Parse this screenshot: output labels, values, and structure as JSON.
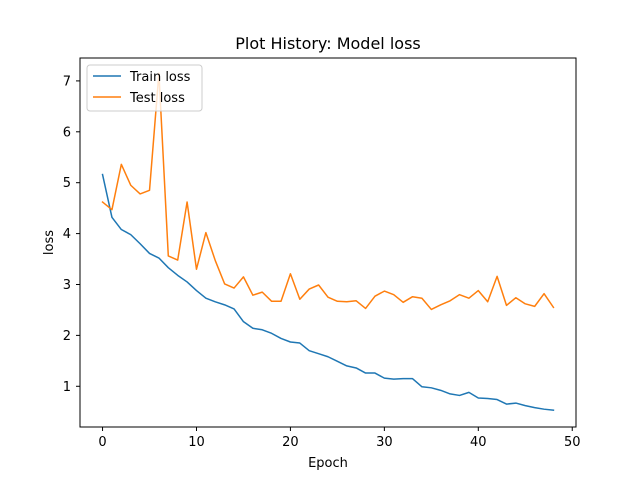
{
  "chart_data": {
    "type": "line",
    "title": "Plot History: Model loss",
    "xlabel": "Epoch",
    "ylabel": "loss",
    "xlim": [
      -2.4,
      50.4
    ],
    "ylim": [
      0.2,
      7.45
    ],
    "xticks": [
      0,
      10,
      20,
      30,
      40,
      50
    ],
    "yticks": [
      1,
      2,
      3,
      4,
      5,
      6,
      7
    ],
    "grid": false,
    "legend_position": "upper-left",
    "x": [
      0,
      1,
      2,
      3,
      4,
      5,
      6,
      7,
      8,
      9,
      10,
      11,
      12,
      13,
      14,
      15,
      16,
      17,
      18,
      19,
      20,
      21,
      22,
      23,
      24,
      25,
      26,
      27,
      28,
      29,
      30,
      31,
      32,
      33,
      34,
      35,
      36,
      37,
      38,
      39,
      40,
      41,
      42,
      43,
      44,
      45,
      46,
      47,
      48
    ],
    "series": [
      {
        "name": "Train loss",
        "color": "#1f77b4",
        "values": [
          5.16,
          4.32,
          4.08,
          3.98,
          3.8,
          3.61,
          3.52,
          3.33,
          3.18,
          3.05,
          2.88,
          2.73,
          2.66,
          2.6,
          2.52,
          2.27,
          2.14,
          2.11,
          2.04,
          1.94,
          1.87,
          1.85,
          1.7,
          1.64,
          1.58,
          1.49,
          1.4,
          1.36,
          1.26,
          1.26,
          1.16,
          1.14,
          1.15,
          1.15,
          0.99,
          0.97,
          0.92,
          0.85,
          0.82,
          0.88,
          0.77,
          0.76,
          0.74,
          0.65,
          0.67,
          0.62,
          0.58,
          0.55,
          0.53
        ]
      },
      {
        "name": "Test loss",
        "color": "#ff7f0e",
        "values": [
          4.62,
          4.47,
          5.36,
          4.95,
          4.78,
          4.85,
          7.15,
          3.56,
          3.48,
          4.62,
          3.3,
          4.02,
          3.47,
          3.01,
          2.93,
          3.15,
          2.79,
          2.85,
          2.67,
          2.67,
          3.21,
          2.71,
          2.91,
          2.99,
          2.75,
          2.67,
          2.66,
          2.68,
          2.53,
          2.77,
          2.87,
          2.8,
          2.65,
          2.76,
          2.73,
          2.51,
          2.6,
          2.68,
          2.8,
          2.73,
          2.88,
          2.66,
          3.16,
          2.59,
          2.74,
          2.62,
          2.57,
          2.82,
          2.55
        ]
      }
    ]
  }
}
